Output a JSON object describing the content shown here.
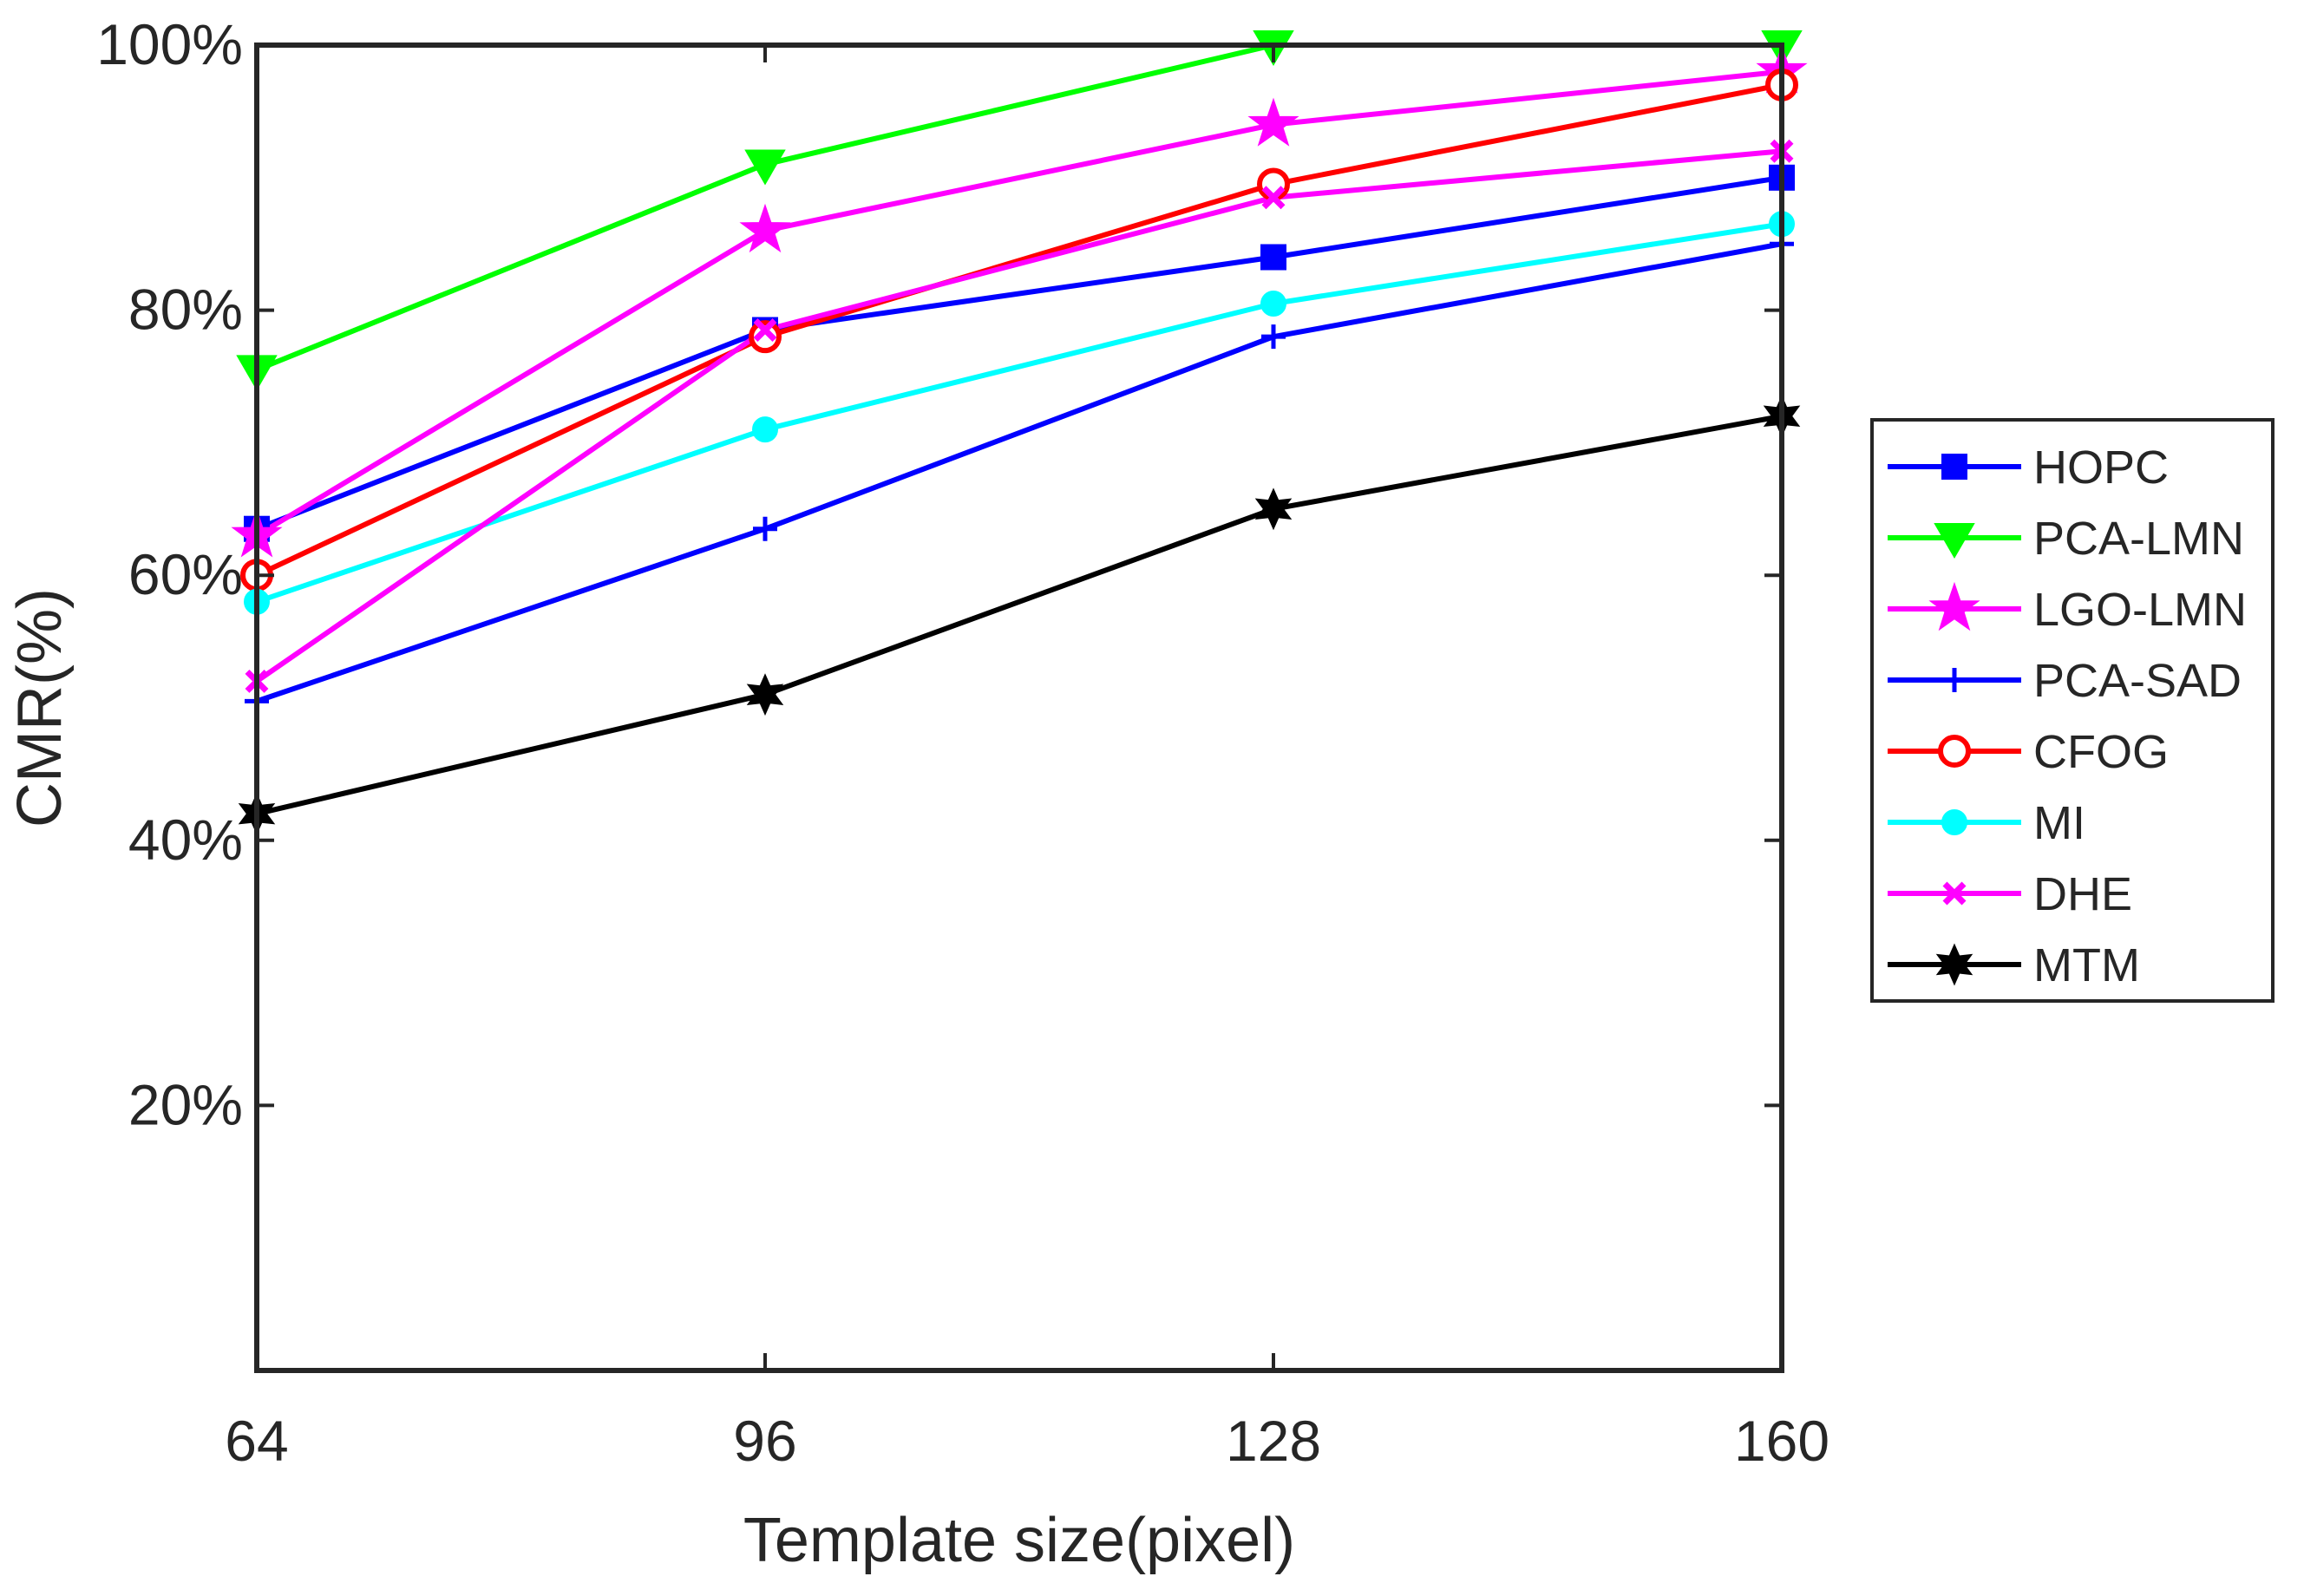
{
  "chart_data": {
    "type": "line",
    "title": "",
    "xlabel": "Template size(pixel)",
    "ylabel": "CMR(%)",
    "categories": [
      "64",
      "96",
      "128",
      "160"
    ],
    "x": [
      64,
      96,
      128,
      160
    ],
    "xlim": [
      64,
      160
    ],
    "ylim": [
      0,
      100
    ],
    "yticks": [
      20,
      40,
      60,
      80,
      100
    ],
    "ytick_labels": [
      "20%",
      "40%",
      "60%",
      "80%",
      "100%"
    ],
    "grid": false,
    "legend_position": "right",
    "series": [
      {
        "name": "HOPC",
        "color": "#0000ff",
        "marker": "square",
        "values": [
          63.5,
          78.5,
          84,
          90
        ]
      },
      {
        "name": "PCA-LMN",
        "color": "#00ff00",
        "marker": "triangle-down",
        "values": [
          75.5,
          91,
          100,
          100
        ]
      },
      {
        "name": "LGO-LMN",
        "color": "#ff00ff",
        "marker": "pentagram",
        "values": [
          63,
          86,
          94,
          98
        ]
      },
      {
        "name": "PCA-SAD",
        "color": "#0000ff",
        "marker": "plus",
        "values": [
          50.5,
          63.5,
          78,
          85
        ]
      },
      {
        "name": "CFOG",
        "color": "#ff0000",
        "marker": "circle",
        "values": [
          60,
          78,
          89.5,
          97
        ]
      },
      {
        "name": "MI",
        "color": "#00ffff",
        "marker": "dot",
        "values": [
          58,
          71,
          80.5,
          86.5
        ]
      },
      {
        "name": "DHE",
        "color": "#ff00ff",
        "marker": "x",
        "values": [
          52,
          78.5,
          88.5,
          92
        ]
      },
      {
        "name": "MTM",
        "color": "#000000",
        "marker": "hexagram",
        "values": [
          42,
          51,
          65,
          72
        ]
      }
    ]
  }
}
